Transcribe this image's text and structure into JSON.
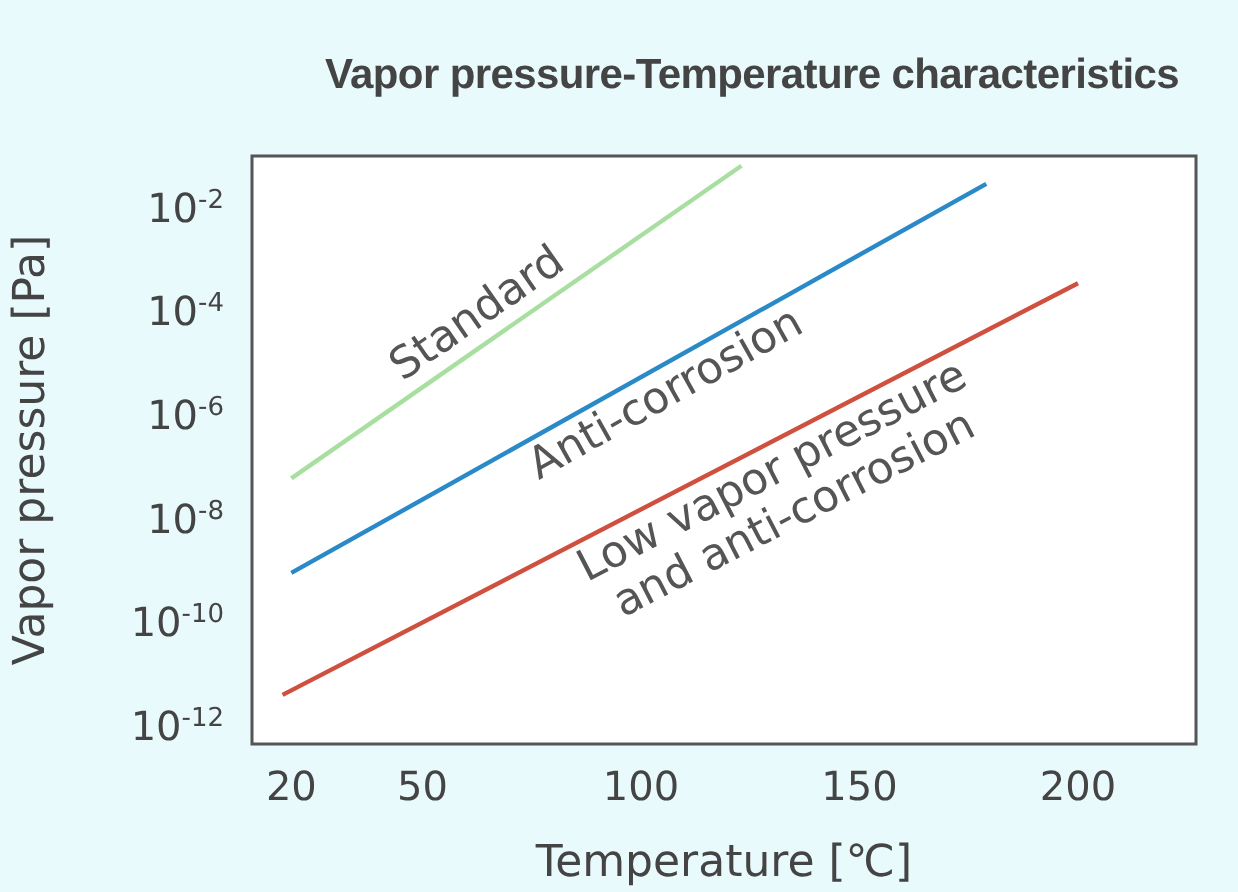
{
  "chart_data": {
    "type": "line",
    "title": "Vapor pressure-Temperature characteristics",
    "xlabel": "Temperature [℃]",
    "ylabel": "Vapor pressure [Pa]",
    "log": "y",
    "marker": "none",
    "line_style": "solid",
    "xlim": [
      11,
      227
    ],
    "xticks": [
      20,
      50,
      100,
      150,
      200
    ],
    "ylim": [
      4.5e-13,
      0.1
    ],
    "yticks": [
      {
        "value": 0.01,
        "label": "10$^{-2}$"
      },
      {
        "value": 0.0001,
        "label": "10$^{-4}$"
      },
      {
        "value": 1e-06,
        "label": "10$^{-6}$"
      },
      {
        "value": 1e-08,
        "label": "10$^{-8}$"
      },
      {
        "value": 1e-10,
        "label": "10$^{-10}$"
      },
      {
        "value": 1e-12,
        "label": "10$^{-12}$"
      }
    ],
    "series": [
      {
        "name": "Standard",
        "color": "#a8dfa0",
        "x": [
          20,
          123
        ],
        "values": [
          6e-08,
          0.065
        ]
      },
      {
        "name": "Anti-corrosion",
        "color": "#2a8ac8",
        "x": [
          20,
          179
        ],
        "values": [
          9e-10,
          0.029
        ]
      },
      {
        "name": "Low vapor pressure\nand anti-corrosion",
        "color": "#d05040",
        "x": [
          18,
          200
        ],
        "values": [
          4e-12,
          0.00035
        ]
      }
    ]
  }
}
